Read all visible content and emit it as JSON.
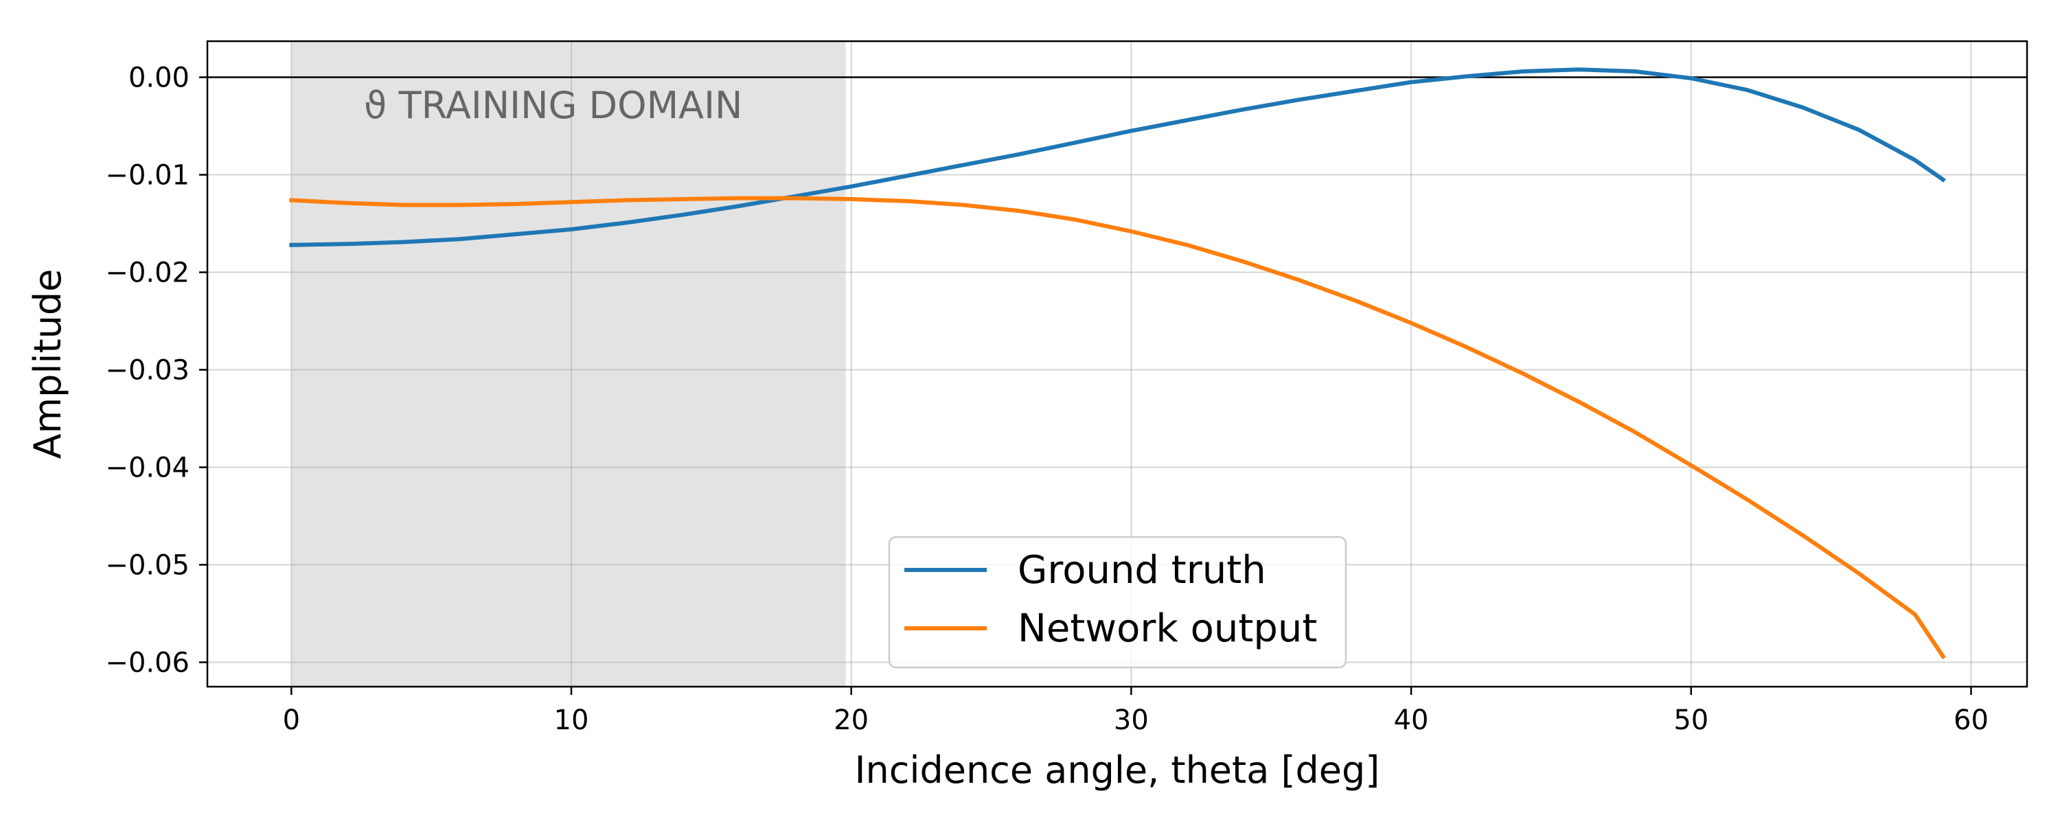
{
  "chart_data": {
    "type": "line",
    "title": "",
    "xlabel": "Incidence angle, theta [deg]",
    "ylabel": "Amplitude",
    "xlim": [
      -3,
      62
    ],
    "ylim": [
      -0.0625,
      0.0037
    ],
    "xticks": [
      0,
      10,
      20,
      30,
      40,
      50,
      60
    ],
    "xtick_labels": [
      "0",
      "10",
      "20",
      "30",
      "40",
      "50",
      "60"
    ],
    "yticks": [
      0.0,
      -0.01,
      -0.02,
      -0.03,
      -0.04,
      -0.05,
      -0.06
    ],
    "ytick_labels": [
      "0.00",
      "−0.01",
      "−0.02",
      "−0.03",
      "−0.04",
      "−0.05",
      "−0.06"
    ],
    "grid": true,
    "legend_position": "bottom-center",
    "reference_line_y": 0.0,
    "shaded_region": {
      "x_start": 0,
      "x_end": 19.8,
      "label": "ϑ TRAINING DOMAIN",
      "color": "#e3e3e3"
    },
    "series": [
      {
        "name": "Ground truth",
        "color": "#1f77b4",
        "x": [
          0,
          2,
          4,
          6,
          8,
          10,
          12,
          14,
          16,
          18,
          20,
          22,
          24,
          26,
          28,
          30,
          32,
          34,
          36,
          38,
          40,
          42,
          44,
          46,
          48,
          50,
          52,
          54,
          56,
          58,
          59
        ],
        "y": [
          -0.0172,
          -0.0171,
          -0.0169,
          -0.0166,
          -0.0161,
          -0.0156,
          -0.0149,
          -0.0141,
          -0.0132,
          -0.0122,
          -0.0112,
          -0.0101,
          -0.009,
          -0.0079,
          -0.0067,
          -0.0055,
          -0.0044,
          -0.0033,
          -0.0023,
          -0.0014,
          -0.0005,
          0.0001,
          0.0006,
          0.0008,
          0.0006,
          -0.0001,
          -0.0013,
          -0.0031,
          -0.0054,
          -0.0085,
          -0.0105
        ]
      },
      {
        "name": "Network output",
        "color": "#ff7f0e",
        "x": [
          0,
          2,
          4,
          6,
          8,
          10,
          12,
          14,
          16,
          18,
          20,
          22,
          24,
          26,
          28,
          30,
          32,
          34,
          36,
          38,
          40,
          42,
          44,
          46,
          48,
          50,
          52,
          54,
          56,
          58,
          59
        ],
        "y": [
          -0.0126,
          -0.0129,
          -0.0131,
          -0.0131,
          -0.013,
          -0.0128,
          -0.0126,
          -0.0125,
          -0.0124,
          -0.0124,
          -0.0125,
          -0.0127,
          -0.0131,
          -0.0137,
          -0.0146,
          -0.0158,
          -0.0172,
          -0.0189,
          -0.0208,
          -0.0229,
          -0.0252,
          -0.0277,
          -0.0304,
          -0.0333,
          -0.0364,
          -0.0398,
          -0.0433,
          -0.047,
          -0.0509,
          -0.0551,
          -0.0594
        ]
      }
    ]
  }
}
